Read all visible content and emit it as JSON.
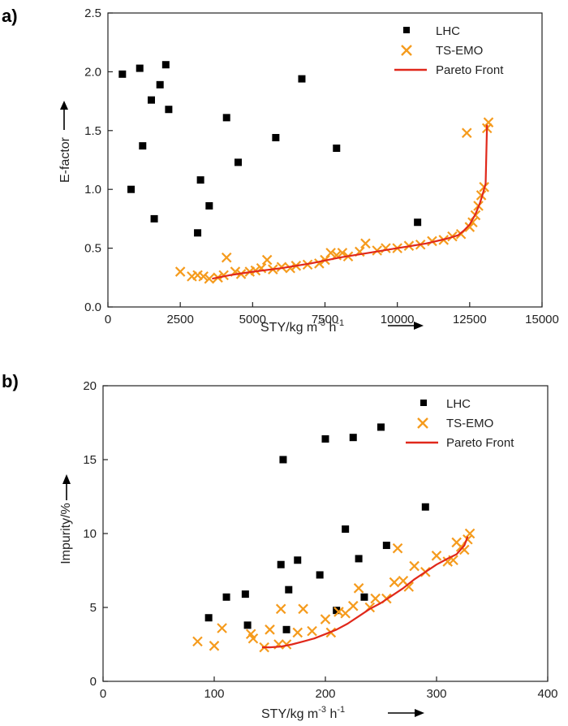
{
  "colors": {
    "lhc": "#000000",
    "tsemo": "#F59B1D",
    "pareto": "#E0281B",
    "axis": "#222222"
  },
  "chart_data": [
    {
      "panel_label": "a)",
      "type": "scatter",
      "xlabel_html": "STY/kg m-3 h-1",
      "xlabel_parts": {
        "base": "STY/kg m",
        "exp1": "-3",
        "mid": " h",
        "exp2": "-1"
      },
      "ylabel": "E-factor",
      "xlim": [
        0,
        15000
      ],
      "ylim": [
        0,
        2.5
      ],
      "x_ticks": [
        0,
        2500,
        5000,
        7500,
        10000,
        12500,
        15000
      ],
      "x_tick_labels": [
        "0",
        "2500",
        "5000",
        "7500",
        "10000",
        "12500",
        "15000"
      ],
      "y_ticks": [
        0,
        0.5,
        1.0,
        1.5,
        2.0,
        2.5
      ],
      "y_tick_labels": [
        "0.0",
        "0.5",
        "1.0",
        "1.5",
        "2.0",
        "2.5"
      ],
      "legend": [
        "LHC",
        "TS-EMO",
        "Pareto Front"
      ],
      "series": [
        {
          "name": "LHC",
          "marker": "square",
          "points": [
            [
              500,
              1.98
            ],
            [
              1100,
              2.03
            ],
            [
              2000,
              2.06
            ],
            [
              800,
              1.0
            ],
            [
              1200,
              1.37
            ],
            [
              1500,
              1.76
            ],
            [
              1800,
              1.89
            ],
            [
              2100,
              1.68
            ],
            [
              1600,
              0.75
            ],
            [
              3100,
              0.63
            ],
            [
              3200,
              1.08
            ],
            [
              3500,
              0.86
            ],
            [
              4100,
              1.61
            ],
            [
              4500,
              1.23
            ],
            [
              5800,
              1.44
            ],
            [
              6700,
              1.94
            ],
            [
              7900,
              1.35
            ],
            [
              10700,
              0.72
            ]
          ]
        },
        {
          "name": "TS-EMO",
          "marker": "x",
          "points": [
            [
              2500,
              0.3
            ],
            [
              2900,
              0.26
            ],
            [
              3100,
              0.27
            ],
            [
              3300,
              0.26
            ],
            [
              3500,
              0.24
            ],
            [
              3800,
              0.25
            ],
            [
              4000,
              0.27
            ],
            [
              4100,
              0.42
            ],
            [
              4400,
              0.3
            ],
            [
              4600,
              0.28
            ],
            [
              4900,
              0.3
            ],
            [
              5100,
              0.31
            ],
            [
              5300,
              0.33
            ],
            [
              5500,
              0.4
            ],
            [
              5700,
              0.32
            ],
            [
              6000,
              0.34
            ],
            [
              6300,
              0.33
            ],
            [
              6500,
              0.35
            ],
            [
              6900,
              0.36
            ],
            [
              7300,
              0.37
            ],
            [
              7500,
              0.4
            ],
            [
              7700,
              0.46
            ],
            [
              7900,
              0.44
            ],
            [
              8100,
              0.46
            ],
            [
              8300,
              0.43
            ],
            [
              8700,
              0.47
            ],
            [
              8900,
              0.54
            ],
            [
              9300,
              0.48
            ],
            [
              9600,
              0.5
            ],
            [
              10000,
              0.5
            ],
            [
              10400,
              0.52
            ],
            [
              10800,
              0.53
            ],
            [
              11200,
              0.56
            ],
            [
              11600,
              0.57
            ],
            [
              11900,
              0.6
            ],
            [
              12200,
              0.62
            ],
            [
              12400,
              1.48
            ],
            [
              12500,
              0.68
            ],
            [
              12600,
              0.72
            ],
            [
              12700,
              0.78
            ],
            [
              12800,
              0.86
            ],
            [
              12900,
              0.95
            ],
            [
              13000,
              1.02
            ],
            [
              13100,
              1.52
            ],
            [
              13150,
              1.57
            ]
          ]
        },
        {
          "name": "Pareto Front",
          "marker": "line",
          "points": [
            [
              3600,
              0.24
            ],
            [
              4200,
              0.27
            ],
            [
              5000,
              0.3
            ],
            [
              6000,
              0.33
            ],
            [
              7000,
              0.37
            ],
            [
              8000,
              0.42
            ],
            [
              9000,
              0.46
            ],
            [
              10000,
              0.5
            ],
            [
              11000,
              0.54
            ],
            [
              11700,
              0.58
            ],
            [
              12100,
              0.61
            ],
            [
              12300,
              0.65
            ],
            [
              12500,
              0.7
            ],
            [
              12700,
              0.79
            ],
            [
              12850,
              0.88
            ],
            [
              12950,
              0.96
            ],
            [
              13050,
              1.05
            ],
            [
              13100,
              1.55
            ]
          ]
        }
      ]
    },
    {
      "panel_label": "b)",
      "type": "scatter",
      "xlabel_parts": {
        "base": "STY/kg m",
        "exp1": "-3",
        "mid": " h",
        "exp2": "-1"
      },
      "ylabel": "Impurity/%",
      "xlim": [
        0,
        400
      ],
      "ylim": [
        0,
        20
      ],
      "x_ticks": [
        0,
        100,
        200,
        300,
        400
      ],
      "x_tick_labels": [
        "0",
        "100",
        "200",
        "300",
        "400"
      ],
      "y_ticks": [
        0,
        5,
        10,
        15,
        20
      ],
      "y_tick_labels": [
        "0",
        "5",
        "10",
        "15",
        "20"
      ],
      "legend": [
        "LHC",
        "TS-EMO",
        "Pareto Front"
      ],
      "series": [
        {
          "name": "LHC",
          "marker": "square",
          "points": [
            [
              95,
              4.3
            ],
            [
              111,
              5.7
            ],
            [
              128,
              5.9
            ],
            [
              130,
              3.8
            ],
            [
              160,
              7.9
            ],
            [
              162,
              15.0
            ],
            [
              165,
              3.5
            ],
            [
              167,
              6.2
            ],
            [
              175,
              8.2
            ],
            [
              195,
              7.2
            ],
            [
              200,
              16.4
            ],
            [
              210,
              4.8
            ],
            [
              218,
              10.3
            ],
            [
              225,
              16.5
            ],
            [
              230,
              8.3
            ],
            [
              235,
              5.7
            ],
            [
              250,
              17.2
            ],
            [
              255,
              9.2
            ],
            [
              290,
              11.8
            ]
          ]
        },
        {
          "name": "TS-EMO",
          "marker": "x",
          "points": [
            [
              85,
              2.7
            ],
            [
              100,
              2.4
            ],
            [
              107,
              3.6
            ],
            [
              133,
              3.2
            ],
            [
              135,
              2.9
            ],
            [
              145,
              2.3
            ],
            [
              150,
              3.5
            ],
            [
              158,
              2.5
            ],
            [
              160,
              4.9
            ],
            [
              165,
              2.5
            ],
            [
              175,
              3.3
            ],
            [
              180,
              4.9
            ],
            [
              188,
              3.4
            ],
            [
              200,
              4.2
            ],
            [
              205,
              3.3
            ],
            [
              212,
              4.7
            ],
            [
              218,
              4.6
            ],
            [
              225,
              5.1
            ],
            [
              230,
              6.3
            ],
            [
              240,
              5.0
            ],
            [
              245,
              5.6
            ],
            [
              255,
              5.6
            ],
            [
              262,
              6.7
            ],
            [
              265,
              9.0
            ],
            [
              270,
              6.8
            ],
            [
              275,
              6.4
            ],
            [
              280,
              7.8
            ],
            [
              290,
              7.4
            ],
            [
              300,
              8.5
            ],
            [
              310,
              8.1
            ],
            [
              315,
              8.2
            ],
            [
              318,
              9.4
            ],
            [
              322,
              9.1
            ],
            [
              325,
              8.9
            ],
            [
              328,
              9.6
            ],
            [
              330,
              10.0
            ]
          ]
        },
        {
          "name": "Pareto Front",
          "marker": "line",
          "points": [
            [
              143,
              2.3
            ],
            [
              150,
              2.3
            ],
            [
              160,
              2.35
            ],
            [
              170,
              2.5
            ],
            [
              180,
              2.7
            ],
            [
              190,
              2.9
            ],
            [
              200,
              3.2
            ],
            [
              210,
              3.5
            ],
            [
              220,
              3.9
            ],
            [
              230,
              4.4
            ],
            [
              240,
              4.9
            ],
            [
              250,
              5.3
            ],
            [
              260,
              5.8
            ],
            [
              270,
              6.3
            ],
            [
              280,
              6.9
            ],
            [
              290,
              7.4
            ],
            [
              300,
              7.9
            ],
            [
              310,
              8.3
            ],
            [
              318,
              8.6
            ],
            [
              325,
              9.2
            ],
            [
              328,
              9.8
            ]
          ]
        }
      ]
    }
  ]
}
